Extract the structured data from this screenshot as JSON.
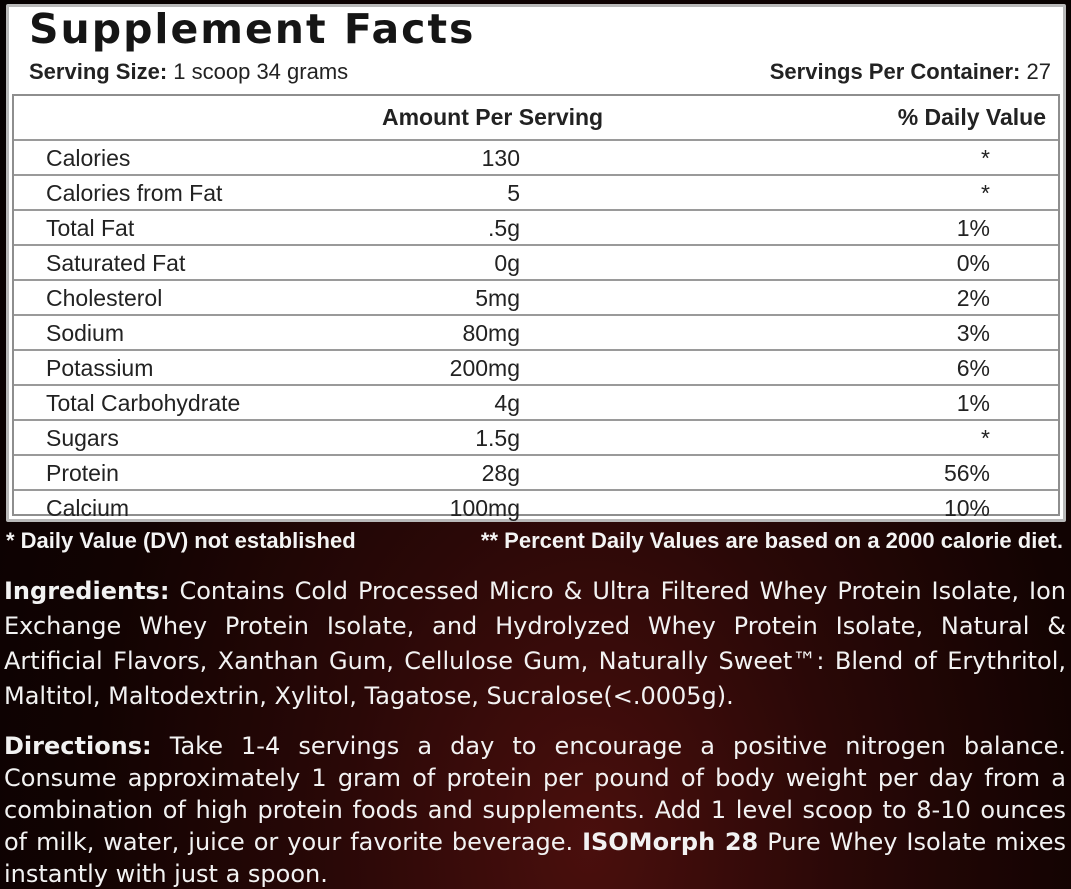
{
  "panel": {
    "title": "Supplement Facts",
    "serving_size_label": "Serving Size:",
    "serving_size_value": "1 scoop 34 grams",
    "servings_label": "Servings Per Container:",
    "servings_value": "27",
    "header_amount": "Amount Per Serving",
    "header_dv": "% Daily Value",
    "rows": [
      {
        "name": "Calories",
        "amount": "130",
        "dv": "*"
      },
      {
        "name": "Calories from Fat",
        "amount": "5",
        "dv": "*"
      },
      {
        "name": "Total Fat",
        "amount": ".5g",
        "dv": "1%"
      },
      {
        "name": "Saturated Fat",
        "amount": "0g",
        "dv": "0%"
      },
      {
        "name": "Cholesterol",
        "amount": "5mg",
        "dv": "2%"
      },
      {
        "name": "Sodium",
        "amount": "80mg",
        "dv": "3%"
      },
      {
        "name": "Potassium",
        "amount": "200mg",
        "dv": "6%"
      },
      {
        "name": "Total Carbohydrate",
        "amount": "4g",
        "dv": "1%"
      },
      {
        "name": "Sugars",
        "amount": "1.5g",
        "dv": "*"
      },
      {
        "name": "Protein",
        "amount": "28g",
        "dv": "56%"
      },
      {
        "name": "Calcium",
        "amount": "100mg",
        "dv": "10%"
      }
    ]
  },
  "notes": {
    "dv_not_established": "* Daily Value (DV) not established",
    "percent_basis": "** Percent Daily Values are based on a 2000 calorie diet."
  },
  "ingredients": {
    "label": "Ingredients:",
    "text": "Contains Cold Processed Micro & Ultra Filtered Whey Protein Isolate, Ion Exchange Whey Protein Isolate, and Hydrolyzed Whey Protein Isolate, Natural & Artificial Flavors, Xanthan Gum, Cellulose Gum, Naturally Sweet™: Blend of Erythritol, Maltitol, Maltodextrin, Xylitol, Tagatose, Sucralose(<.0005g)."
  },
  "directions": {
    "label": "Directions:",
    "text_before": "Take 1-4 servings a day to encourage a positive nitrogen balance. Consume approximately 1 gram of protein per pound of body weight per day from a combination of high protein foods and supplements. Add 1 level scoop to 8-10 ounces of milk, water, juice or your favorite beverage.",
    "product_name": "ISOMorph 28",
    "text_after": "Pure Whey Isolate mixes instantly with just a spoon."
  }
}
